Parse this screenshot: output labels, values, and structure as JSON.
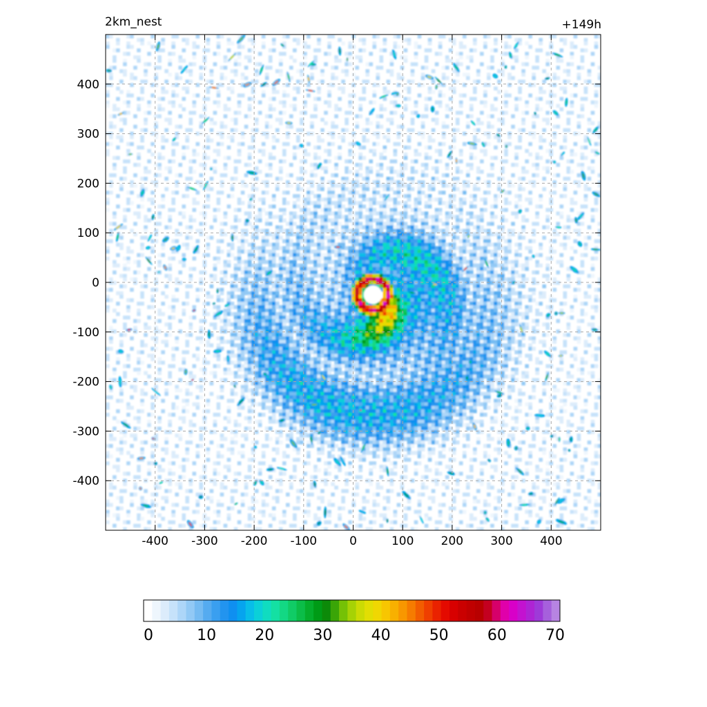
{
  "header": {
    "left_title": "2km_nest",
    "right_title": "+149h"
  },
  "colors": {
    "ramp": [
      "#ffffff",
      "#eef6fd",
      "#dcecfb",
      "#c6e2fa",
      "#add6f8",
      "#92c9f5",
      "#75bbf2",
      "#55abf0",
      "#3a9ff0",
      "#2294ef",
      "#0f8ff0",
      "#06a4ee",
      "#08bde8",
      "#0bd0d8",
      "#10dcc0",
      "#14e0a3",
      "#13d884",
      "#10cc66",
      "#0bbd48",
      "#05ad2b",
      "#009b16",
      "#0c8a09",
      "#3aa507",
      "#75c106",
      "#a6d205",
      "#cbdb04",
      "#e2de03",
      "#f0d702",
      "#f7c601",
      "#f8b000",
      "#f89700",
      "#f67c00",
      "#f25d00",
      "#ef3f00",
      "#ea2200",
      "#e40a00",
      "#d80000",
      "#ca0000",
      "#c00000",
      "#b80000",
      "#c40020",
      "#d6006a",
      "#e000aa",
      "#d800c8",
      "#c312d0",
      "#ae24d4",
      "#9e3ad8",
      "#a660dc",
      "#b784e2"
    ],
    "grid": "#a8a8a8"
  },
  "chart_data": {
    "type": "heatmap",
    "title": "",
    "xlabel": "",
    "ylabel": "",
    "xlim": [
      -500,
      500
    ],
    "ylim": [
      -500,
      500
    ],
    "x_ticks": [
      "-400",
      "-300",
      "-200",
      "-100",
      "0",
      "100",
      "200",
      "300",
      "400"
    ],
    "y_ticks": [
      "400",
      "300",
      "200",
      "100",
      "0",
      "-100",
      "-200",
      "-300",
      "-400"
    ],
    "grid": true,
    "colorbar": {
      "position": "bottom",
      "range": [
        0,
        70
      ],
      "tick_labels": [
        "0",
        "10",
        "20",
        "30",
        "40",
        "50",
        "60",
        "70"
      ]
    },
    "eye_center": [
      40,
      -25
    ],
    "eye_radius": 22,
    "eyewall_peak": 58
  }
}
